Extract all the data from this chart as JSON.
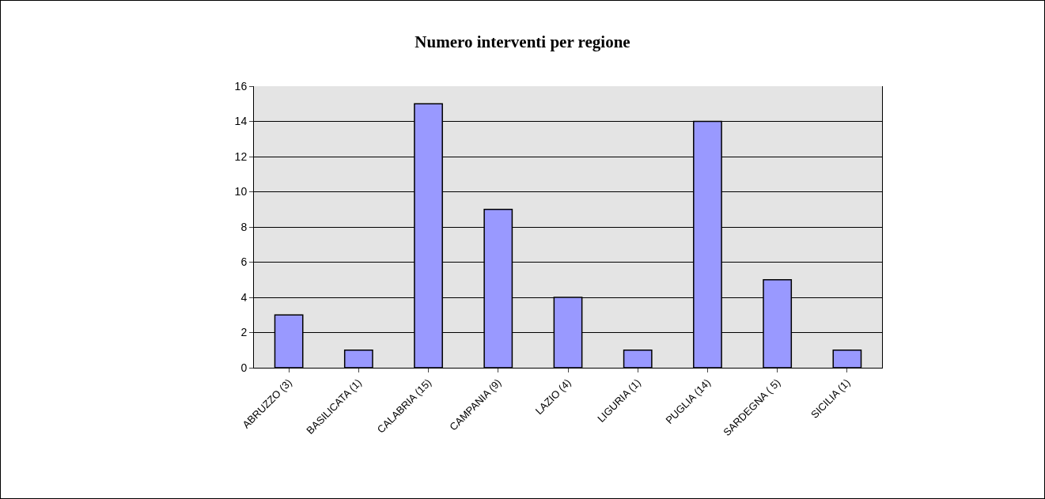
{
  "chart_data": {
    "type": "bar",
    "title": "Numero interventi per regione",
    "categories": [
      "ABRUZZO (3)",
      "BASILICATA (1)",
      "CALABRIA (15)",
      "CAMPANIA (9)",
      "LAZIO (4)",
      "LIGURIA (1)",
      "PUGLIA (14)",
      "SARDEGNA ( 5)",
      "SICILIA (1)"
    ],
    "values": [
      3,
      1,
      15,
      9,
      4,
      1,
      14,
      5,
      1
    ],
    "color": "#9999ff",
    "ylim": [
      0,
      16
    ],
    "yticks": [
      0,
      2,
      4,
      6,
      8,
      10,
      12,
      14,
      16
    ],
    "grid": "y",
    "legend": false
  }
}
